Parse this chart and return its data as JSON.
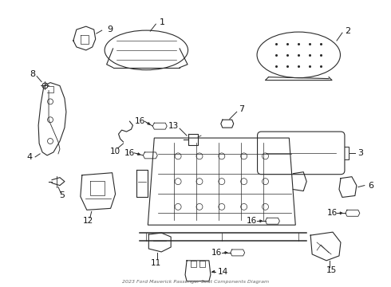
{
  "title": "2023 Ford Maverick Passenger Seat Components Diagram",
  "bg_color": "#ffffff",
  "line_color": "#2a2a2a",
  "text_color": "#111111",
  "lw": 0.8
}
